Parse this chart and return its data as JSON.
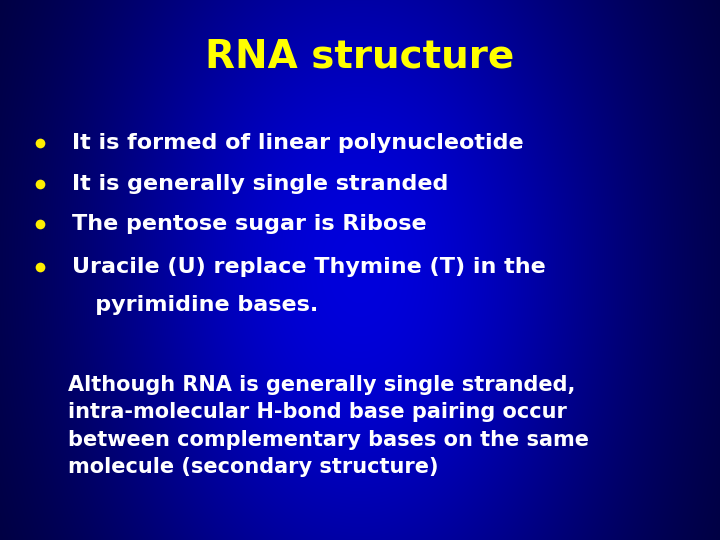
{
  "title": "RNA structure",
  "title_color": "#FFFF00",
  "title_fontsize": 28,
  "title_fontweight": "bold",
  "bullet_color": "#FFEE00",
  "bullet_text_color": "#FFFFFF",
  "bullet_fontsize": 16,
  "bullet_fontweight": "bold",
  "bullets": [
    "It is formed of linear polynucleotide",
    "It is generally single stranded",
    "The pentose sugar is Ribose",
    "Uracile (U) replace Thymine (T) in the"
  ],
  "bullet4_line2": "   pyrimidine bases.",
  "paragraph_color": "#FFFFFF",
  "paragraph_fontsize": 15,
  "paragraph_fontweight": "bold",
  "paragraph": "Although RNA is generally single stranded,\nintra-molecular H-bond base pairing occur\nbetween complementary bases on the same\nmolecule (secondary structure)"
}
